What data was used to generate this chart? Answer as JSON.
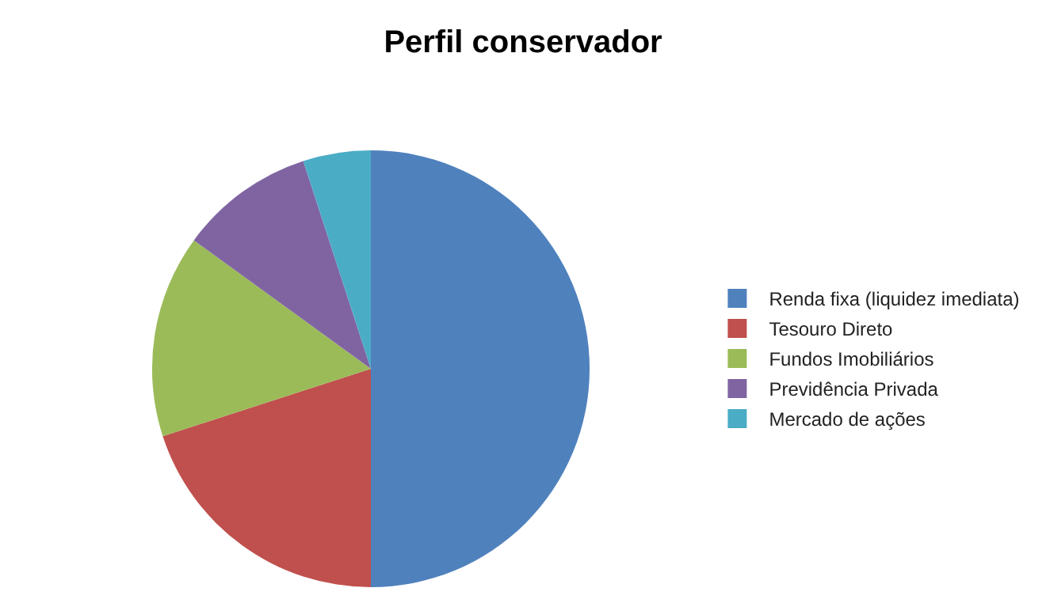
{
  "chart_data": {
    "type": "pie",
    "title": "Perfil conservador",
    "categories": [
      "Renda fixa (liquidez imediata)",
      "Tesouro Direto",
      "Fundos Imobiliários",
      "Previdência Privada",
      "Mercado de ações"
    ],
    "values": [
      50,
      20,
      15,
      10,
      5
    ],
    "colors": [
      "#4f81bd",
      "#c0504d",
      "#9bbb59",
      "#8064a2",
      "#4bacc6"
    ],
    "legend": "right"
  }
}
